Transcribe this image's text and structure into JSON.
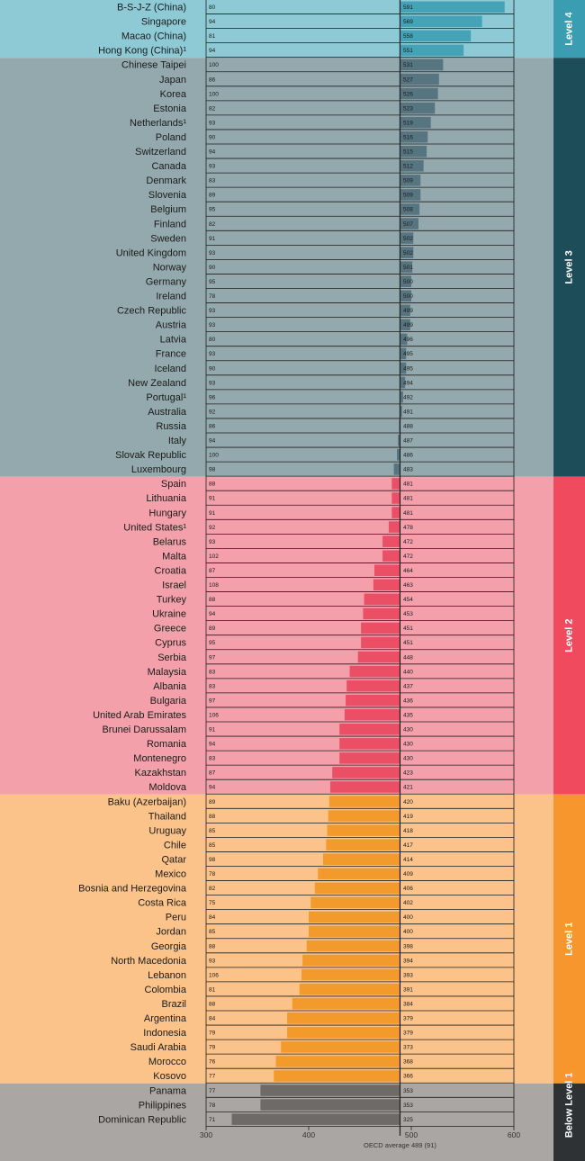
{
  "chart_data": {
    "type": "bar",
    "xlim": [
      300,
      600
    ],
    "x_ticks": [
      "300",
      "400",
      "500",
      "600"
    ],
    "reference_value": 489,
    "reference_label": "OECD average 489 (91)",
    "colors": {
      "Level 4": {
        "band": "#8ecad6",
        "strip": "#3a9db1",
        "bar": "#45a3b7"
      },
      "Level 3": {
        "band": "#93a9ae",
        "strip": "#1d4d59",
        "bar": "#577580"
      },
      "Level 2": {
        "band": "#f4a0aa",
        "strip": "#ef4a5d",
        "bar": "#eb4f66"
      },
      "Level 1": {
        "band": "#fbc389",
        "strip": "#f6962c",
        "bar": "#f39a2c"
      },
      "Below Level 1": {
        "band": "#aaa6a3",
        "strip": "#2f3235",
        "bar": "#6d6a68"
      }
    },
    "groups": [
      {
        "label": "Level 4",
        "rows": [
          {
            "country": "B-S-J-Z (China)",
            "n": "80",
            "score": 591
          },
          {
            "country": "Singapore",
            "n": "94",
            "score": 569
          },
          {
            "country": "Macao (China)",
            "n": "81",
            "score": 558
          },
          {
            "country": "Hong Kong (China)¹",
            "n": "94",
            "score": 551
          }
        ]
      },
      {
        "label": "Level 3",
        "rows": [
          {
            "country": "Chinese Taipei",
            "n": "100",
            "score": 531
          },
          {
            "country": "Japan",
            "n": "86",
            "score": 527
          },
          {
            "country": "Korea",
            "n": "100",
            "score": 526
          },
          {
            "country": "Estonia",
            "n": "82",
            "score": 523
          },
          {
            "country": "Netherlands¹",
            "n": "93",
            "score": 519
          },
          {
            "country": "Poland",
            "n": "90",
            "score": 516
          },
          {
            "country": "Switzerland",
            "n": "94",
            "score": 515
          },
          {
            "country": "Canada",
            "n": "93",
            "score": 512
          },
          {
            "country": "Denmark",
            "n": "83",
            "score": 509
          },
          {
            "country": "Slovenia",
            "n": "89",
            "score": 509
          },
          {
            "country": "Belgium",
            "n": "95",
            "score": 508
          },
          {
            "country": "Finland",
            "n": "82",
            "score": 507
          },
          {
            "country": "Sweden",
            "n": "91",
            "score": 502
          },
          {
            "country": "United Kingdom",
            "n": "93",
            "score": 502
          },
          {
            "country": "Norway",
            "n": "90",
            "score": 501
          },
          {
            "country": "Germany",
            "n": "95",
            "score": 500
          },
          {
            "country": "Ireland",
            "n": "78",
            "score": 500
          },
          {
            "country": "Czech Republic",
            "n": "93",
            "score": 499
          },
          {
            "country": "Austria",
            "n": "93",
            "score": 499
          },
          {
            "country": "Latvia",
            "n": "80",
            "score": 496
          },
          {
            "country": "France",
            "n": "93",
            "score": 495
          },
          {
            "country": "Iceland",
            "n": "90",
            "score": 495
          },
          {
            "country": "New Zealand",
            "n": "93",
            "score": 494
          },
          {
            "country": "Portugal¹",
            "n": "96",
            "score": 492
          },
          {
            "country": "Australia",
            "n": "92",
            "score": 491
          },
          {
            "country": "Russia",
            "n": "86",
            "score": 488
          },
          {
            "country": "Italy",
            "n": "94",
            "score": 487
          },
          {
            "country": "Slovak Republic",
            "n": "100",
            "score": 486
          },
          {
            "country": "Luxembourg",
            "n": "98",
            "score": 483
          }
        ]
      },
      {
        "label": "Level 2",
        "rows": [
          {
            "country": "Spain",
            "n": "88",
            "score": 481
          },
          {
            "country": "Lithuania",
            "n": "91",
            "score": 481
          },
          {
            "country": "Hungary",
            "n": "91",
            "score": 481
          },
          {
            "country": "United States¹",
            "n": "92",
            "score": 478
          },
          {
            "country": "Belarus",
            "n": "93",
            "score": 472
          },
          {
            "country": "Malta",
            "n": "102",
            "score": 472
          },
          {
            "country": "Croatia",
            "n": "87",
            "score": 464
          },
          {
            "country": "Israel",
            "n": "108",
            "score": 463
          },
          {
            "country": "Turkey",
            "n": "88",
            "score": 454
          },
          {
            "country": "Ukraine",
            "n": "94",
            "score": 453
          },
          {
            "country": "Greece",
            "n": "89",
            "score": 451
          },
          {
            "country": "Cyprus",
            "n": "95",
            "score": 451
          },
          {
            "country": "Serbia",
            "n": "97",
            "score": 448
          },
          {
            "country": "Malaysia",
            "n": "83",
            "score": 440
          },
          {
            "country": "Albania",
            "n": "83",
            "score": 437
          },
          {
            "country": "Bulgaria",
            "n": "97",
            "score": 436
          },
          {
            "country": "United Arab Emirates",
            "n": "106",
            "score": 435
          },
          {
            "country": "Brunei Darussalam",
            "n": "91",
            "score": 430
          },
          {
            "country": "Romania",
            "n": "94",
            "score": 430
          },
          {
            "country": "Montenegro",
            "n": "83",
            "score": 430
          },
          {
            "country": "Kazakhstan",
            "n": "87",
            "score": 423
          },
          {
            "country": "Moldova",
            "n": "94",
            "score": 421
          }
        ]
      },
      {
        "label": "Level 1",
        "rows": [
          {
            "country": "Baku (Azerbaijan)",
            "n": "89",
            "score": 420
          },
          {
            "country": "Thailand",
            "n": "88",
            "score": 419
          },
          {
            "country": "Uruguay",
            "n": "85",
            "score": 418
          },
          {
            "country": "Chile",
            "n": "85",
            "score": 417
          },
          {
            "country": "Qatar",
            "n": "98",
            "score": 414
          },
          {
            "country": "Mexico",
            "n": "78",
            "score": 409
          },
          {
            "country": "Bosnia and Herzegovina",
            "n": "82",
            "score": 406
          },
          {
            "country": "Costa Rica",
            "n": "75",
            "score": 402
          },
          {
            "country": "Peru",
            "n": "84",
            "score": 400
          },
          {
            "country": "Jordan",
            "n": "85",
            "score": 400
          },
          {
            "country": "Georgia",
            "n": "88",
            "score": 398
          },
          {
            "country": "North Macedonia",
            "n": "93",
            "score": 394
          },
          {
            "country": "Lebanon",
            "n": "106",
            "score": 393
          },
          {
            "country": "Colombia",
            "n": "81",
            "score": 391
          },
          {
            "country": "Brazil",
            "n": "88",
            "score": 384
          },
          {
            "country": "Argentina",
            "n": "84",
            "score": 379
          },
          {
            "country": "Indonesia",
            "n": "79",
            "score": 379
          },
          {
            "country": "Saudi Arabia",
            "n": "79",
            "score": 373
          },
          {
            "country": "Morocco",
            "n": "76",
            "score": 368
          },
          {
            "country": "Kosovo",
            "n": "77",
            "score": 366
          }
        ]
      },
      {
        "label": "Below Level 1",
        "rows": [
          {
            "country": "Panama",
            "n": "77",
            "score": 353
          },
          {
            "country": "Philippines",
            "n": "78",
            "score": 353
          },
          {
            "country": "Dominican Republic",
            "n": "71",
            "score": 325
          }
        ]
      }
    ]
  }
}
